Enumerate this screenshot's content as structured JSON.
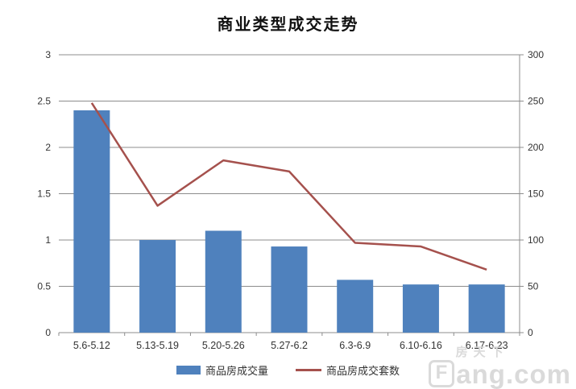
{
  "title": "商业类型成交走势",
  "legend": {
    "bar_label": "商品房成交量",
    "line_label": "商品房成交套数"
  },
  "watermark": {
    "logo_letter": "F",
    "brand_cn": "房天下",
    "brand_suffix": "ang.com"
  },
  "colors": {
    "bar": "#4f81bd",
    "line": "#a5514d",
    "grid": "#8c8c8c",
    "axis": "#8c8c8c",
    "text": "#333333"
  },
  "chart_data": {
    "type": "bar",
    "title": "商业类型成交走势",
    "categories": [
      "5.6-5.12",
      "5.13-5.19",
      "5.20-5.26",
      "5.27-6.2",
      "6.3-6.9",
      "6.10-6.16",
      "6.17-6.23"
    ],
    "series": [
      {
        "name": "商品房成交量",
        "type": "bar",
        "axis": "left",
        "color": "#4f81bd",
        "values": [
          2.4,
          1.0,
          1.1,
          0.93,
          0.57,
          0.52,
          0.52
        ]
      },
      {
        "name": "商品房成交套数",
        "type": "line",
        "axis": "right",
        "color": "#a5514d",
        "values": [
          248,
          137,
          186,
          174,
          97,
          93,
          68
        ]
      }
    ],
    "xlabel": "",
    "ylabel": "",
    "left_axis": {
      "min": 0,
      "max": 3,
      "ticks": [
        "0",
        "0.5",
        "1",
        "1.5",
        "2",
        "2.5",
        "3"
      ]
    },
    "right_axis": {
      "min": 0,
      "max": 300,
      "ticks": [
        "0",
        "50",
        "100",
        "150",
        "200",
        "250",
        "300"
      ]
    },
    "grid": true,
    "legend_position": "bottom"
  }
}
